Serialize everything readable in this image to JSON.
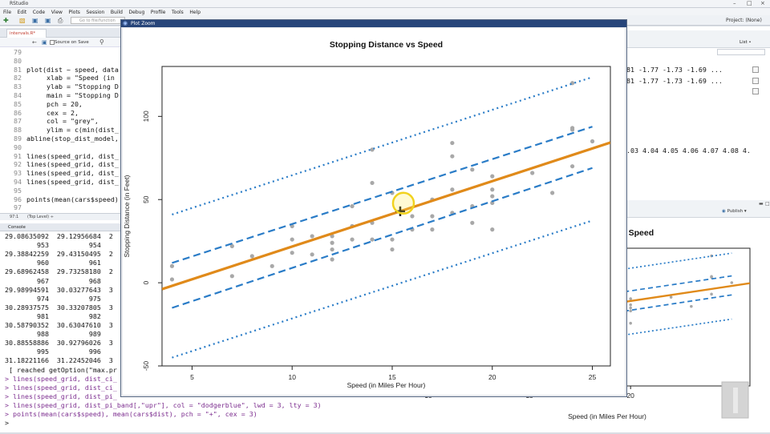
{
  "window": {
    "title": "RStudio"
  },
  "menu": [
    "File",
    "Edit",
    "Code",
    "View",
    "Plots",
    "Session",
    "Build",
    "Debug",
    "Profile",
    "Tools",
    "Help"
  ],
  "toolbar": {
    "goto_placeholder": "Go to file/function",
    "project": "Project: (None)"
  },
  "editor": {
    "tab_label": "intervals.R*",
    "source_on_save": "Source on Save",
    "lines": [
      {
        "n": "79",
        "code": ""
      },
      {
        "n": "80",
        "code": ""
      },
      {
        "n": "81",
        "code": "plot(dist ~ speed, data"
      },
      {
        "n": "82",
        "code": "     xlab = \"Speed (in "
      },
      {
        "n": "83",
        "code": "     ylab = \"Stopping D"
      },
      {
        "n": "84",
        "code": "     main = \"Stopping D"
      },
      {
        "n": "85",
        "code": "     pch = 20,"
      },
      {
        "n": "86",
        "code": "     cex = 2,"
      },
      {
        "n": "87",
        "code": "     col = \"grey\","
      },
      {
        "n": "88",
        "code": "     ylim = c(min(dist_"
      },
      {
        "n": "89",
        "code": "abline(stop_dist_model,"
      },
      {
        "n": "90",
        "code": ""
      },
      {
        "n": "91",
        "code": "lines(speed_grid, dist_"
      },
      {
        "n": "92",
        "code": "lines(speed_grid, dist_"
      },
      {
        "n": "93",
        "code": "lines(speed_grid, dist_"
      },
      {
        "n": "94",
        "code": "lines(speed_grid, dist_"
      },
      {
        "n": "95",
        "code": ""
      },
      {
        "n": "96",
        "code": "points(mean(cars$speed)"
      },
      {
        "n": "97",
        "code": ""
      }
    ],
    "status_pos": "97:1",
    "status_scope": "(Top Level) ÷"
  },
  "console": {
    "tab_label": "Console",
    "lines": [
      {
        "text": "29.08635092  29.12956684  2",
        "cmd": false
      },
      {
        "text": "        953          954",
        "cmd": false
      },
      {
        "text": "29.38842259  29.43150495  2",
        "cmd": false
      },
      {
        "text": "        960          961",
        "cmd": false
      },
      {
        "text": "29.68962458  29.73258180  2",
        "cmd": false
      },
      {
        "text": "        967          968",
        "cmd": false
      },
      {
        "text": "29.98994591  30.03277643  3",
        "cmd": false
      },
      {
        "text": "        974          975",
        "cmd": false
      },
      {
        "text": "30.28937575  30.33207805  3",
        "cmd": false
      },
      {
        "text": "        981          982",
        "cmd": false
      },
      {
        "text": "30.58790352  30.63047610  3",
        "cmd": false
      },
      {
        "text": "        988          989",
        "cmd": false
      },
      {
        "text": "30.88558886  30.92796026  3",
        "cmd": false
      },
      {
        "text": "        995          996",
        "cmd": false
      },
      {
        "text": "31.18221166  31.22452046  3",
        "cmd": false
      },
      {
        "text": " [ reached getOption(\"max.pr",
        "cmd": false
      },
      {
        "text": "> lines(speed_grid, dist_ci_",
        "cmd": true
      },
      {
        "text": "> lines(speed_grid, dist_ci_",
        "cmd": true
      },
      {
        "text": "> lines(speed_grid, dist_pi_",
        "cmd": true
      },
      {
        "text": "> lines(speed_grid, dist_pi_band[,\"upr\"], col = \"dodgerblue\", lwd = 3, lty = 3)",
        "cmd": true
      },
      {
        "text": "> points(mean(cars$speed), mean(cars$dist), pch = \"+\", cex = 3)",
        "cmd": true
      },
      {
        "text": ">",
        "cmd": false
      }
    ]
  },
  "environment": {
    "list_label": "List •",
    "rows": [
      {
        "text": ".81 -1.77 -1.73 -1.69 ..."
      },
      {
        "text": ".81 -1.77 -1.73 -1.69 ..."
      },
      {
        "text": "4.03 4.04 4.05 4.06 4.07 4.08 4."
      }
    ]
  },
  "plots_pane": {
    "publish": "Publish",
    "partial_title": "s Speed",
    "xlabel": "Speed (in Miles Per Hour)",
    "xticks": [
      "5",
      "10",
      "15",
      "20",
      "25"
    ]
  },
  "zoom": {
    "window_title": "Plot Zoom"
  },
  "chart_data": {
    "type": "scatter",
    "title": "Stopping Distance vs Speed",
    "xlabel": "Speed (in Miles Per Hour)",
    "ylabel": "Stopping Distance (in Feet)",
    "xlim": [
      3.5,
      25.9
    ],
    "ylim": [
      -50,
      130
    ],
    "xticks": [
      5,
      10,
      15,
      20,
      25
    ],
    "yticks": [
      -50,
      0,
      50,
      100
    ],
    "points": {
      "x": [
        4,
        4,
        7,
        7,
        8,
        9,
        10,
        10,
        10,
        11,
        11,
        12,
        12,
        12,
        12,
        13,
        13,
        13,
        13,
        14,
        14,
        14,
        14,
        15,
        15,
        15,
        16,
        16,
        17,
        17,
        17,
        18,
        18,
        18,
        18,
        19,
        19,
        19,
        20,
        20,
        20,
        20,
        20,
        22,
        23,
        24,
        24,
        24,
        24,
        25
      ],
      "y": [
        2,
        10,
        4,
        22,
        16,
        10,
        18,
        26,
        34,
        17,
        28,
        14,
        20,
        24,
        28,
        26,
        34,
        34,
        46,
        26,
        36,
        60,
        80,
        20,
        26,
        54,
        32,
        40,
        32,
        40,
        50,
        42,
        56,
        76,
        84,
        36,
        46,
        68,
        32,
        48,
        52,
        56,
        64,
        66,
        54,
        70,
        92,
        93,
        120,
        85
      ]
    },
    "fit": {
      "name": "fit",
      "intercept": -17.579,
      "slope": 3.932,
      "color": "#e08a1a"
    },
    "confidence_band": {
      "lwr": [
        [
          4,
          -15.1
        ],
        [
          25,
          69.0
        ]
      ],
      "upr": [
        [
          4,
          11.9
        ],
        [
          25,
          93.8
        ]
      ],
      "color": "#2a7cc7"
    },
    "prediction_band": {
      "lwr": [
        [
          4,
          -45.0
        ],
        [
          25,
          37.4
        ]
      ],
      "upr": [
        [
          4,
          41.0
        ],
        [
          25,
          123.6
        ]
      ],
      "color": "#2a7cc7"
    },
    "mean_point": {
      "x": 15.4,
      "y": 42.98,
      "marker": "+"
    },
    "point_color": "#a8a8a8",
    "grid": false,
    "legend": "none"
  }
}
